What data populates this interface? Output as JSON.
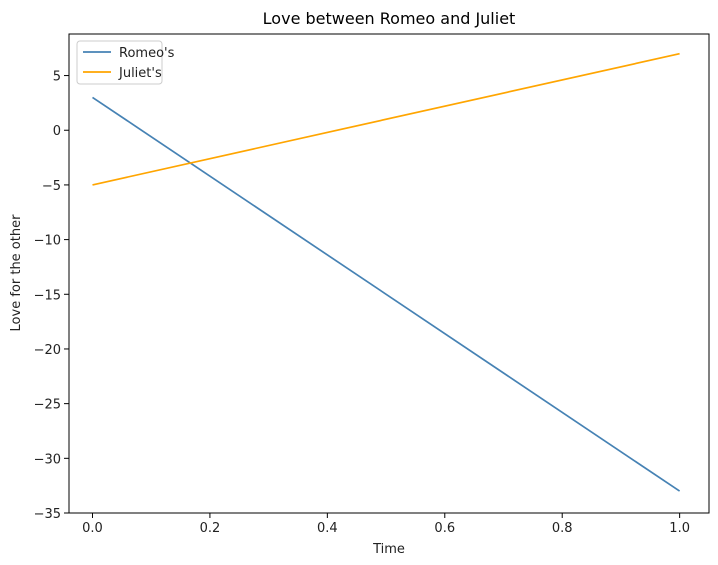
{
  "chart_data": {
    "type": "line",
    "title": "Love between Romeo and Juliet",
    "xlabel": "Time",
    "ylabel": "Love for the other",
    "xlim": [
      -0.04,
      1.05
    ],
    "ylim": [
      -35,
      8.8
    ],
    "xticks": [
      0.0,
      0.2,
      0.4,
      0.6,
      0.8,
      1.0
    ],
    "xtick_labels": [
      "0.0",
      "0.2",
      "0.4",
      "0.6",
      "0.8",
      "1.0"
    ],
    "yticks": [
      -35,
      -30,
      -25,
      -20,
      -15,
      -10,
      -5,
      0,
      5
    ],
    "ytick_labels": [
      "−35",
      "−30",
      "−25",
      "−20",
      "−15",
      "−10",
      "−5",
      "0",
      "5"
    ],
    "grid": false,
    "legend": {
      "position": "upper-left"
    },
    "series": [
      {
        "name": "Romeo's",
        "color": "#4682b4",
        "x": [
          0.0,
          1.0
        ],
        "y": [
          3,
          -33
        ]
      },
      {
        "name": "Juliet's",
        "color": "#ffa500",
        "x": [
          0.0,
          1.0
        ],
        "y": [
          -5,
          7
        ]
      }
    ]
  }
}
